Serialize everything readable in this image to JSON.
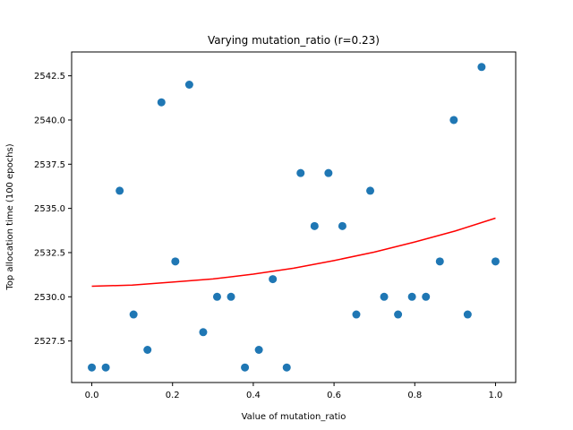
{
  "chart_data": {
    "type": "scatter",
    "title": "Varying mutation_ratio (r=0.23)",
    "xlabel": "Value of mutation_ratio",
    "ylabel": "Top allocation time (100 epochs)",
    "xlim": [
      -0.05,
      1.05
    ],
    "ylim": [
      2525.15,
      2543.85
    ],
    "xticks": [
      0.0,
      0.2,
      0.4,
      0.6,
      0.8,
      1.0
    ],
    "xtick_labels": [
      "0.0",
      "0.2",
      "0.4",
      "0.6",
      "0.8",
      "1.0"
    ],
    "yticks": [
      2527.5,
      2530.0,
      2532.5,
      2535.0,
      2537.5,
      2540.0,
      2542.5
    ],
    "ytick_labels": [
      "2527.5",
      "2530.0",
      "2532.5",
      "2535.0",
      "2537.5",
      "2540.0",
      "2542.5"
    ],
    "grid": false,
    "marker_color": "#1f77b4",
    "fit_color": "#ff0000",
    "points": [
      {
        "x": 0.0,
        "y": 2526
      },
      {
        "x": 0.0345,
        "y": 2526
      },
      {
        "x": 0.069,
        "y": 2536
      },
      {
        "x": 0.1034,
        "y": 2529
      },
      {
        "x": 0.1379,
        "y": 2527
      },
      {
        "x": 0.1724,
        "y": 2541
      },
      {
        "x": 0.2069,
        "y": 2532
      },
      {
        "x": 0.2414,
        "y": 2542
      },
      {
        "x": 0.2759,
        "y": 2528
      },
      {
        "x": 0.3103,
        "y": 2530
      },
      {
        "x": 0.3448,
        "y": 2530
      },
      {
        "x": 0.3793,
        "y": 2526
      },
      {
        "x": 0.4138,
        "y": 2527
      },
      {
        "x": 0.4483,
        "y": 2531
      },
      {
        "x": 0.4828,
        "y": 2526
      },
      {
        "x": 0.5172,
        "y": 2537
      },
      {
        "x": 0.5517,
        "y": 2534
      },
      {
        "x": 0.5862,
        "y": 2537
      },
      {
        "x": 0.6207,
        "y": 2534
      },
      {
        "x": 0.6552,
        "y": 2529
      },
      {
        "x": 0.6897,
        "y": 2536
      },
      {
        "x": 0.7241,
        "y": 2530
      },
      {
        "x": 0.7586,
        "y": 2529
      },
      {
        "x": 0.7931,
        "y": 2530
      },
      {
        "x": 0.8276,
        "y": 2530
      },
      {
        "x": 0.8621,
        "y": 2532
      },
      {
        "x": 0.8966,
        "y": 2540
      },
      {
        "x": 0.931,
        "y": 2529
      },
      {
        "x": 0.9655,
        "y": 2543
      },
      {
        "x": 1.0,
        "y": 2532
      }
    ],
    "fit_curve": [
      {
        "x": 0.0,
        "y": 2530.6
      },
      {
        "x": 0.1,
        "y": 2530.66
      },
      {
        "x": 0.2,
        "y": 2530.83
      },
      {
        "x": 0.3,
        "y": 2531.01
      },
      {
        "x": 0.4,
        "y": 2531.28
      },
      {
        "x": 0.5,
        "y": 2531.62
      },
      {
        "x": 0.6,
        "y": 2532.05
      },
      {
        "x": 0.7,
        "y": 2532.53
      },
      {
        "x": 0.8,
        "y": 2533.1
      },
      {
        "x": 0.9,
        "y": 2533.72
      },
      {
        "x": 1.0,
        "y": 2534.45
      }
    ]
  }
}
